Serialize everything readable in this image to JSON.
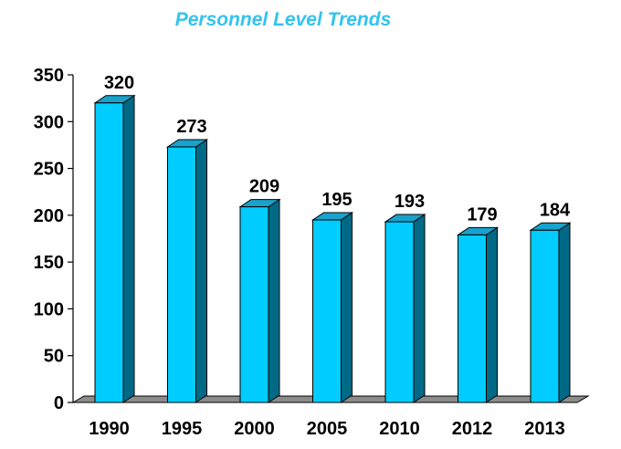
{
  "chart_data": {
    "type": "bar",
    "title": "Personnel Level Trends",
    "categories": [
      "1990",
      "1995",
      "2000",
      "2005",
      "2010",
      "2012",
      "2013"
    ],
    "values": [
      320,
      273,
      209,
      195,
      193,
      179,
      184
    ],
    "data_labels": [
      "320",
      "273",
      "209",
      "195",
      "193",
      "179",
      "184"
    ],
    "ylim": [
      0,
      350
    ],
    "yticks": [
      0,
      50,
      100,
      150,
      200,
      250,
      300,
      350
    ],
    "grid": false,
    "legend": "none",
    "bar_style": "3d",
    "colors": {
      "bar_front": "#00ccff",
      "bar_top": "#18a2cc",
      "bar_side": "#006a86",
      "floor": "#8c8c8c",
      "title": "#33c3ef"
    }
  }
}
